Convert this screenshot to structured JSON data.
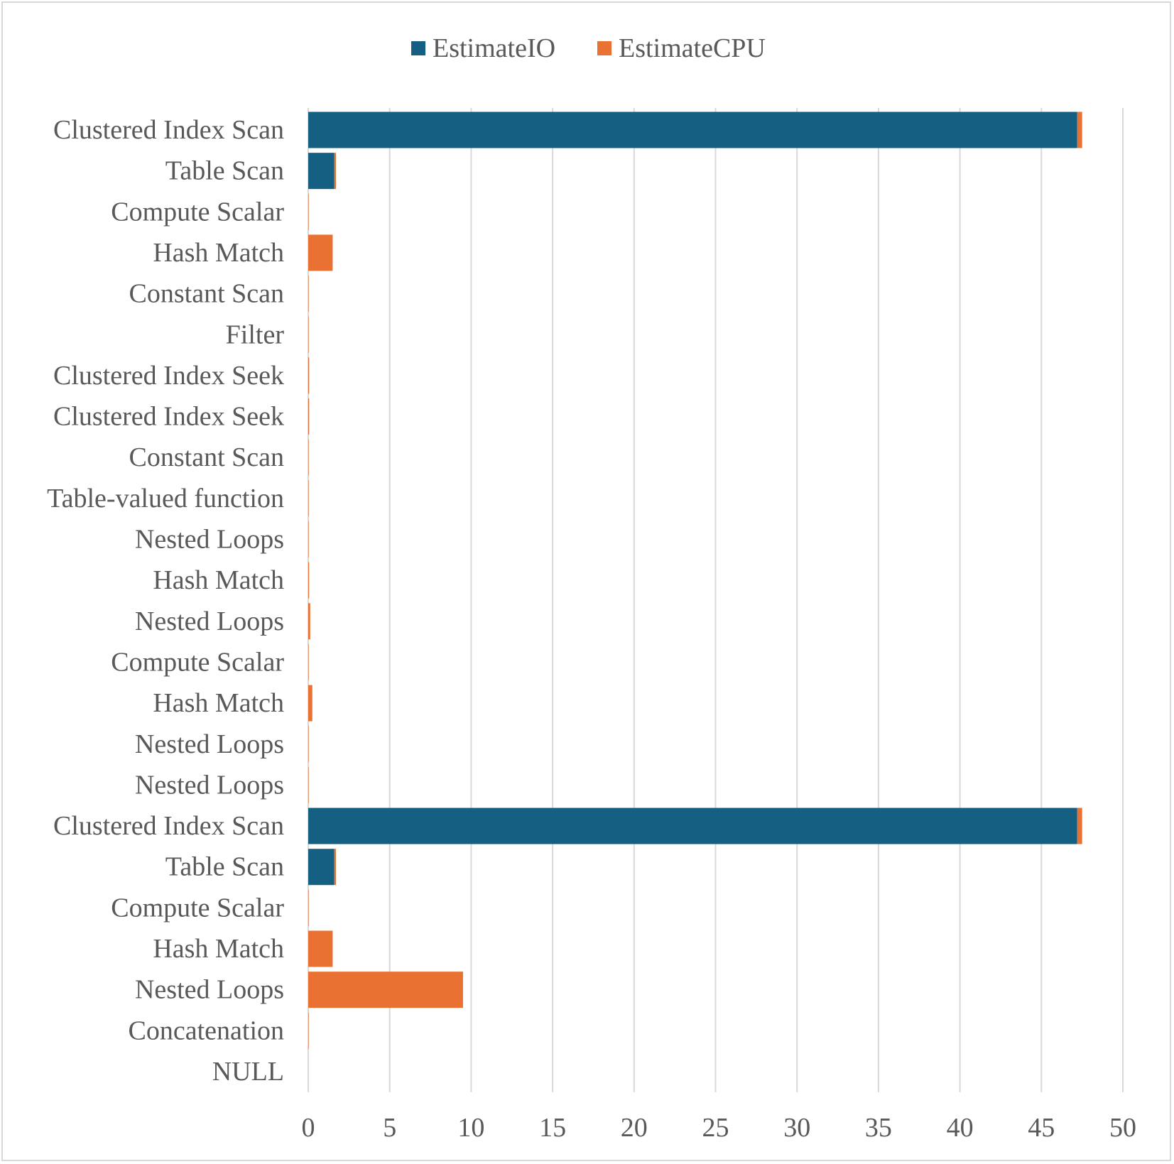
{
  "chart_data": {
    "type": "bar",
    "orientation": "horizontal",
    "stacked": true,
    "categories": [
      "Clustered Index Scan",
      "Table Scan",
      "Compute Scalar",
      "Hash Match",
      "Constant Scan",
      "Filter",
      "Clustered Index Seek",
      "Clustered Index Seek",
      "Constant Scan",
      "Table-valued function",
      "Nested Loops",
      "Hash Match",
      "Nested Loops",
      "Compute Scalar",
      "Hash Match",
      "Nested Loops",
      "Nested Loops",
      "Clustered Index Scan",
      "Table Scan",
      "Compute Scalar",
      "Hash Match",
      "Nested Loops",
      "Concatenation",
      "NULL"
    ],
    "series": [
      {
        "name": "EstimateIO",
        "color": "#156082",
        "values": [
          47.2,
          1.6,
          0,
          0,
          0,
          0,
          0.003,
          0.003,
          0,
          0,
          0,
          0,
          0,
          0,
          0,
          0,
          0,
          47.2,
          1.6,
          0,
          0,
          0,
          0,
          0
        ]
      },
      {
        "name": "EstimateCPU",
        "color": "#E97132",
        "values": [
          0.3,
          0.1,
          0.005,
          1.5,
          0.001,
          0.005,
          0.05,
          0.05,
          0.001,
          0.01,
          0.02,
          0.05,
          0.12,
          0.005,
          0.25,
          0.01,
          0.01,
          0.3,
          0.1,
          0.005,
          1.5,
          9.5,
          0.003,
          0
        ]
      }
    ],
    "xlim": [
      0,
      50
    ],
    "xticks": [
      "0",
      "5",
      "10",
      "15",
      "20",
      "25",
      "30",
      "35",
      "40",
      "45",
      "50"
    ],
    "grid": true,
    "legend_position": "top-center",
    "title": "",
    "xlabel": "",
    "ylabel": ""
  }
}
